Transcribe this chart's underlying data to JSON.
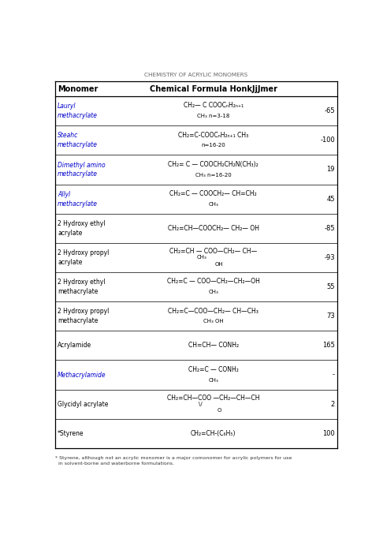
{
  "title": "CHEMISTRY OF ACRYLIC MONOMERS",
  "header_col1": "Monomer",
  "header_col2": "Chemical Formula HonkJjJmer",
  "footer": "* Styrene, although not an acrylic monomer is a major comonomer for acrylic polymers for use\n  in solvent-borne and waterborne formulations.",
  "rows": [
    {
      "monomer": "Lauryl\nmethacrylate",
      "formula_line1": "CH₂— C COOCₙH₂ₙ₊₁",
      "formula_line2": "CH₃ n=3-18",
      "formula_line3": "",
      "tg": "-65",
      "monomer_italic": true
    },
    {
      "monomer": "Steahc\nmethacrylate",
      "formula_line1": "CH₂=C-COOCₙH₂ₙ₊₁ CH₃",
      "formula_line2": "n=16-20",
      "formula_line3": "",
      "tg": "-100",
      "monomer_italic": true
    },
    {
      "monomer": "Dimethyl amino\nmethacrylate",
      "formula_line1": "CH₂= C — COOCH₂CH₂N(CH₃)₂",
      "formula_line2": "CH₃ n=16-20",
      "formula_line3": "",
      "tg": "19",
      "monomer_italic": true
    },
    {
      "monomer": "Allyl\nmethacrylate",
      "formula_line1": "CH₂=C — COOCH₂— CH=CH₂",
      "formula_line2": "CH₃",
      "formula_line3": "",
      "tg": "45",
      "monomer_italic": true
    },
    {
      "monomer": "2 Hydroxy ethyl\nacrylate",
      "formula_line1": "CH₂=CH—COOCH₂— CH₂— OH",
      "formula_line2": "",
      "formula_line3": "",
      "tg": "-85",
      "monomer_italic": false
    },
    {
      "monomer": "2 Hydroxy propyl\nacrylate",
      "formula_line1": "CH₂=CH — COO—CH₂— CH—",
      "formula_line2": "CH₃",
      "formula_line3": "OH",
      "tg": "-93",
      "monomer_italic": false
    },
    {
      "monomer": "2 Hydroxy ethyl\nmethacrylate",
      "formula_line1": "CH₂=C — COO—CH₂—CH₂—OH",
      "formula_line2": "CH₃",
      "formula_line3": "",
      "tg": "55",
      "monomer_italic": false
    },
    {
      "monomer": "2 Hydroxy propyl\nmethacrylate",
      "formula_line1": "CH₂=C—COO—CH₂— CH—CH₃",
      "formula_line2": "CH₃ OH",
      "formula_line3": "",
      "tg": "73",
      "monomer_italic": false
    },
    {
      "monomer": "Acrylamide",
      "formula_line1": "CH=CH— CONH₂",
      "formula_line2": "",
      "formula_line3": "",
      "tg": "165",
      "monomer_italic": false
    },
    {
      "monomer": "Methacrylamide",
      "formula_line1": "CH₂=C — CONH₂",
      "formula_line2": "CH₃",
      "formula_line3": "",
      "tg": "-",
      "monomer_italic": true
    },
    {
      "monomer": "Glycidyl acrylate",
      "formula_line1": "CH₂=CH—COO —CH₂—CH—CH",
      "formula_line2": "\\/ ",
      "formula_line3": "O",
      "tg": "2",
      "monomer_italic": false
    },
    {
      "monomer": "*Styrene",
      "formula_line1": "CH₂=CH-(C₆H₅)",
      "formula_line2": "",
      "formula_line3": "",
      "tg": "100",
      "monomer_italic": false
    }
  ],
  "bg_color": "#ffffff",
  "line_color": "#000000",
  "monomer_color_italic": "#0000cc",
  "monomer_color_normal": "#000000",
  "formula_color": "#000000",
  "tg_color": "#000000"
}
